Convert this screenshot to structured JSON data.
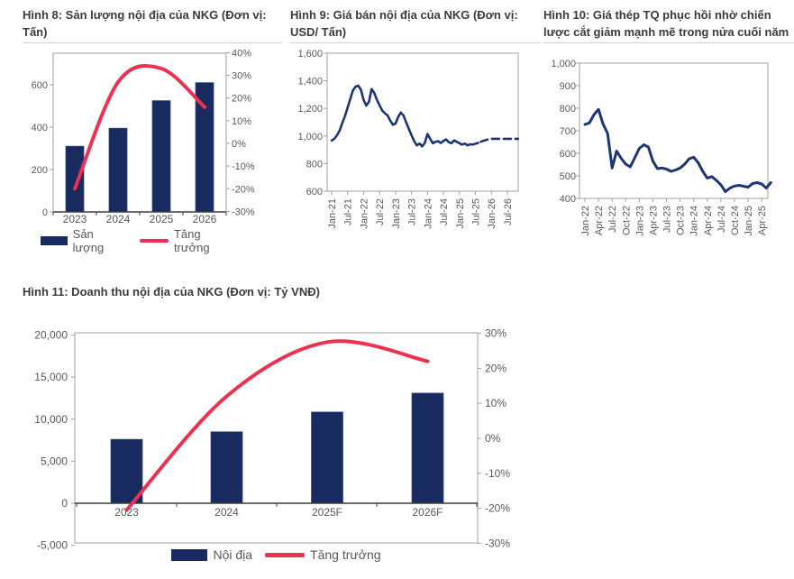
{
  "colors": {
    "bar_navy": "#182a5e",
    "line_navy": "#1e3573",
    "growth_red": "#ed3150",
    "frame_gray": "#a0a0a0",
    "axis_dark": "#3f3f3f",
    "tick_text": "#595959",
    "title_text": "#3a3a40"
  },
  "chart_data": [
    {
      "id": "fig8",
      "type": "combo",
      "title": "Hình 8: Sản lượng nội địa của NKG (Đơn vị: Tấn)",
      "categories": [
        "2023",
        "2024",
        "2025",
        "2026"
      ],
      "bar_series": {
        "name": "Sản lượng",
        "values": [
          310,
          395,
          525,
          610
        ]
      },
      "line_series": {
        "name": "Tăng trưởng",
        "values_pct": [
          -20,
          27,
          33,
          16
        ]
      },
      "left_axis": {
        "tick_values": [
          0,
          200,
          400,
          600
        ],
        "tick_labels": [
          "0",
          "200",
          "400",
          "600"
        ],
        "min": 0,
        "max": 750
      },
      "right_axis": {
        "tick_values": [
          40,
          30,
          20,
          10,
          0,
          -10,
          -20,
          -30
        ],
        "tick_labels": [
          "40%",
          "30%",
          "20%",
          "10%",
          "0%",
          "-10%",
          "-20%",
          "-30%"
        ],
        "min": -30,
        "max": 40
      },
      "legend": [
        "Sản lượng",
        "Tăng trưởng"
      ]
    },
    {
      "id": "fig9",
      "type": "line",
      "title": "Hình 9: Giá bán nội địa của NKG (Đơn vị: USD/ Tấn)",
      "y_axis": {
        "tick_values": [
          1600,
          1400,
          1200,
          1000,
          800,
          600
        ],
        "tick_labels": [
          "1,600",
          "1,400",
          "1,200",
          "1,000",
          "800",
          "600"
        ],
        "min": 600,
        "max": 1600
      },
      "x_axis": {
        "labels": [
          "Jan-21",
          "Jul-21",
          "Jan-22",
          "Jul-22",
          "Jan-23",
          "Jul-23",
          "Jan-24",
          "Jul-24",
          "Jan-25",
          "Jul-25",
          "Jan-26",
          "Jul-26"
        ],
        "label_months": [
          0,
          6,
          12,
          18,
          24,
          30,
          36,
          42,
          48,
          54,
          60,
          66
        ],
        "start": "Jan-21"
      },
      "solid_values": [
        968,
        980,
        1005,
        1040,
        1095,
        1145,
        1205,
        1270,
        1330,
        1358,
        1365,
        1335,
        1262,
        1220,
        1248,
        1340,
        1312,
        1262,
        1222,
        1185,
        1165,
        1150,
        1112,
        1082,
        1090,
        1140,
        1170,
        1148,
        1098,
        1050,
        1005,
        962,
        932,
        945,
        925,
        950,
        1015,
        980,
        948,
        958,
        962,
        950,
        965,
        975,
        955,
        948,
        968,
        958,
        948,
        938,
        945,
        932,
        940,
        938,
        944,
        950
      ],
      "dashed_months": [
        56,
        58,
        60,
        62,
        64,
        66,
        68,
        70
      ],
      "dashed_values": [
        958,
        972,
        980,
        980,
        980,
        980,
        980,
        980
      ]
    },
    {
      "id": "fig10",
      "type": "line",
      "title": "Hình 10: Giá thép TQ phục hồi nhờ chiến lược cắt giảm mạnh mẽ trong nửa cuối năm",
      "y_axis": {
        "tick_values": [
          1000,
          900,
          800,
          700,
          600,
          500,
          400
        ],
        "tick_labels": [
          "1,000",
          "900",
          "800",
          "700",
          "600",
          "500",
          "400"
        ],
        "min": 400,
        "max": 1000
      },
      "x_axis": {
        "labels": [
          "Jan-22",
          "Apr-22",
          "Jul-22",
          "Oct-22",
          "Jan-23",
          "Apr-23",
          "Jul-23",
          "Oct-23",
          "Jan-24",
          "Apr-24",
          "Jul-24",
          "Oct-24",
          "Jan-25",
          "Apr-25"
        ],
        "label_months": [
          0,
          3,
          6,
          9,
          12,
          15,
          18,
          21,
          24,
          27,
          30,
          33,
          36,
          39
        ],
        "start": "Jan-22"
      },
      "solid_values": [
        728,
        735,
        772,
        795,
        730,
        688,
        535,
        610,
        578,
        552,
        540,
        580,
        622,
        638,
        628,
        565,
        532,
        535,
        530,
        520,
        526,
        535,
        552,
        576,
        583,
        558,
        520,
        490,
        497,
        480,
        460,
        430,
        446,
        455,
        458,
        454,
        450,
        466,
        470,
        464,
        446,
        470
      ]
    },
    {
      "id": "fig11",
      "type": "combo",
      "title": "Hình 11: Doanh thu nội địa của NKG (Đơn vị: Tỷ VNĐ)",
      "categories": [
        "2023",
        "2024",
        "2025F",
        "2026F"
      ],
      "bar_series": {
        "name": "Nội địa",
        "values": [
          7600,
          8500,
          10850,
          13100
        ]
      },
      "line_series": {
        "name": "Tăng trưởng",
        "values_pct": [
          -20.5,
          12,
          27.5,
          22
        ]
      },
      "left_axis": {
        "tick_values": [
          20000,
          15000,
          10000,
          5000,
          0,
          -5000
        ],
        "tick_labels": [
          "20,000",
          "15,000",
          "10,000",
          "5,000",
          "0",
          "-5,000"
        ],
        "min": -5000,
        "max": 20000
      },
      "right_axis": {
        "tick_values": [
          30,
          20,
          10,
          0,
          -10,
          -20,
          -30
        ],
        "tick_labels": [
          "30%",
          "20%",
          "10%",
          "0%",
          "-10%",
          "-20%",
          "-30%"
        ],
        "min": -30,
        "max": 30
      },
      "legend": [
        "Nội địa",
        "Tăng trưởng"
      ]
    }
  ]
}
